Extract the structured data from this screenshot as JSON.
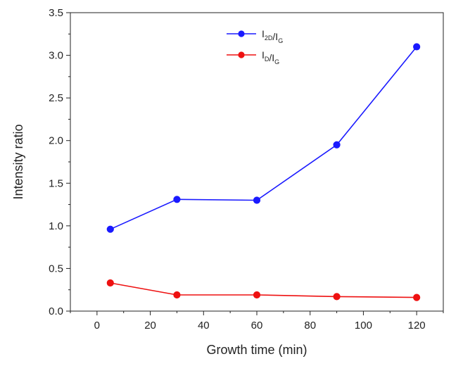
{
  "chart_data": {
    "type": "line",
    "title": "",
    "xlabel": "Growth time (min)",
    "ylabel": "Intensity ratio",
    "xlim": [
      -10,
      130
    ],
    "ylim": [
      0,
      3.5
    ],
    "x_ticks": [
      0,
      20,
      40,
      60,
      80,
      100,
      120
    ],
    "x_tick_labels": [
      "0",
      "20",
      "40",
      "60",
      "80",
      "100",
      "120"
    ],
    "y_ticks": [
      0,
      0.5,
      1.0,
      1.5,
      2.0,
      2.5,
      3.0,
      3.5
    ],
    "y_tick_labels": [
      "0.0",
      "0.5",
      "1.0",
      "1.5",
      "2.0",
      "2.5",
      "3.0",
      "3.5"
    ],
    "grid": false,
    "legend_position": "top-center",
    "series": [
      {
        "name": "I2D/IG",
        "legend_main": [
          "I",
          "/I"
        ],
        "legend_sub": [
          "2D",
          "G"
        ],
        "color": "#1a1aff",
        "x": [
          5,
          30,
          60,
          90,
          120
        ],
        "y": [
          0.96,
          1.31,
          1.3,
          1.95,
          3.1
        ]
      },
      {
        "name": "ID/IG",
        "legend_main": [
          "I",
          "/I"
        ],
        "legend_sub": [
          "D",
          "G"
        ],
        "color": "#ee1111",
        "x": [
          5,
          30,
          60,
          90,
          120
        ],
        "y": [
          0.33,
          0.19,
          0.19,
          0.17,
          0.16
        ]
      }
    ]
  }
}
